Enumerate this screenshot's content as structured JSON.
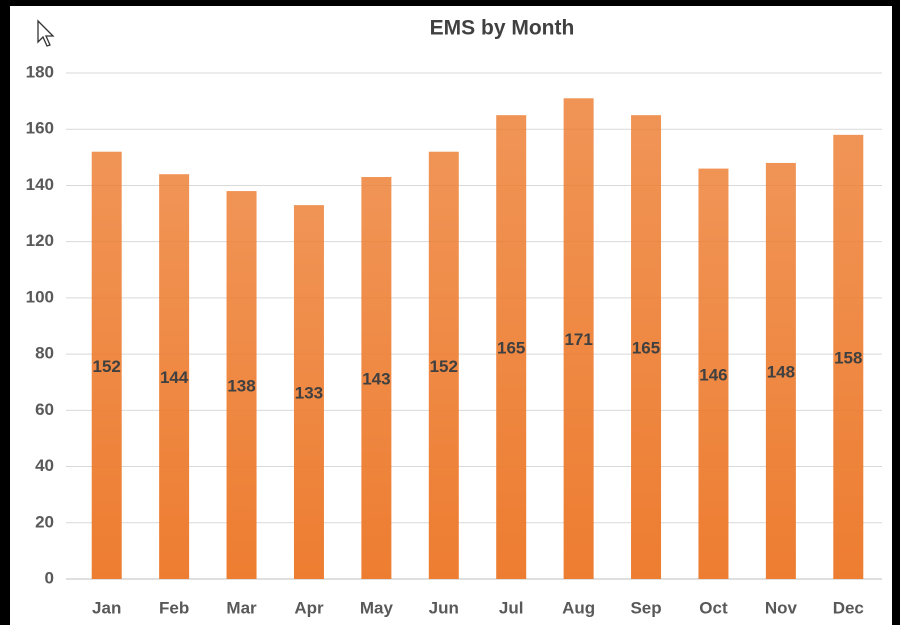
{
  "chart_data": {
    "type": "bar",
    "title": "EMS by Month",
    "categories": [
      "Jan",
      "Feb",
      "Mar",
      "Apr",
      "May",
      "Jun",
      "Jul",
      "Aug",
      "Sep",
      "Oct",
      "Nov",
      "Dec"
    ],
    "values": [
      152,
      144,
      138,
      133,
      143,
      152,
      165,
      171,
      165,
      146,
      148,
      158
    ],
    "color": "#ed7d31",
    "ylim": [
      0,
      180
    ],
    "yticks": [
      0,
      20,
      40,
      60,
      80,
      100,
      120,
      140,
      160,
      180
    ],
    "grid": true
  }
}
